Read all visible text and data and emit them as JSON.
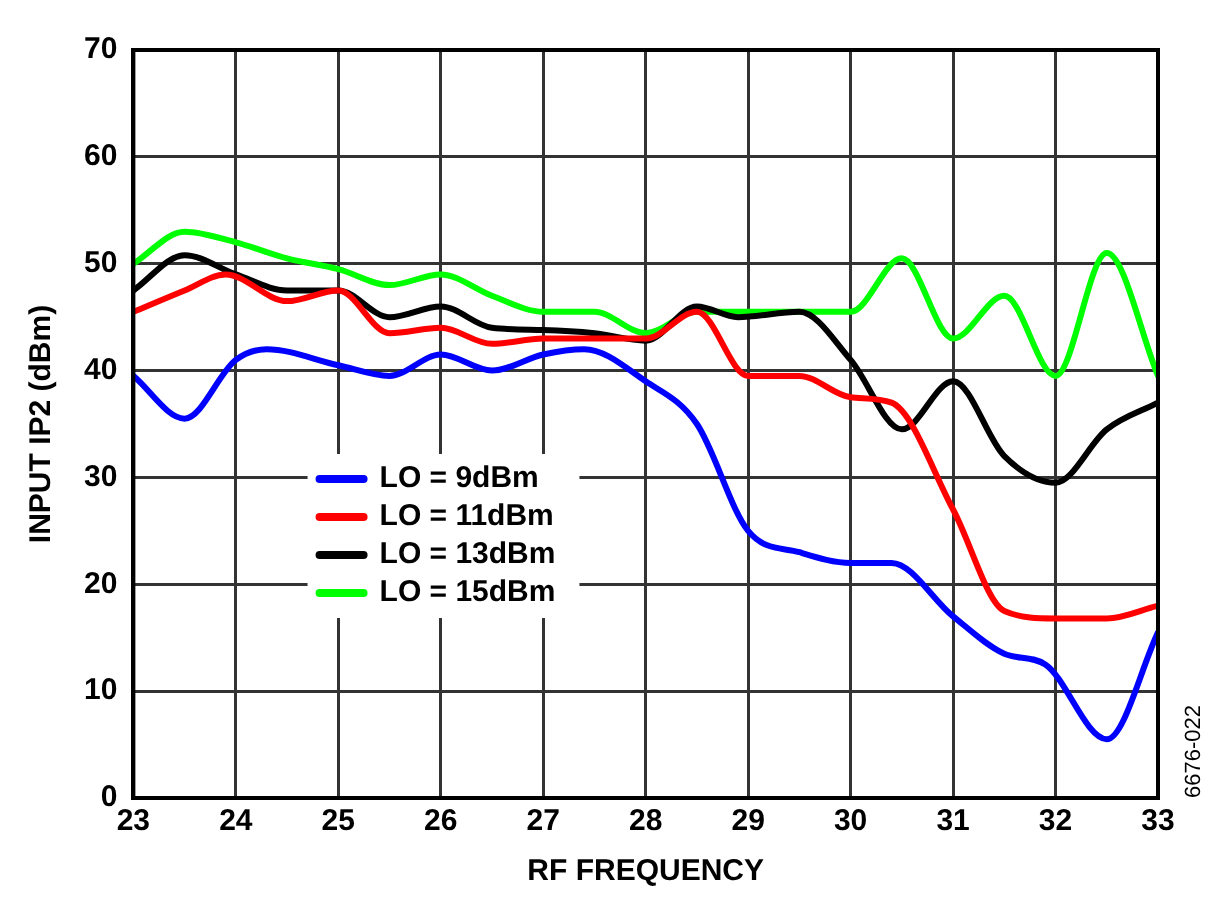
{
  "chart_data": {
    "type": "line",
    "xlabel": "RF FREQUENCY",
    "ylabel": "INPUT IP2 (dBm)",
    "xlim": [
      23,
      33
    ],
    "xticks": [
      23,
      24,
      25,
      26,
      27,
      28,
      29,
      30,
      31,
      32,
      33
    ],
    "ylim": [
      0,
      70
    ],
    "yticks": [
      0,
      10,
      20,
      30,
      40,
      50,
      60,
      70
    ],
    "grid": true,
    "legend": "bottom left",
    "marker": "none",
    "line_style": "solid",
    "annotations": [
      "6676-022"
    ],
    "series": [
      {
        "name": "LO = 9dBm",
        "color": "#0000ff",
        "x": [
          23,
          23.5,
          24,
          24.3,
          25,
          25.5,
          26,
          26.5,
          27,
          27.4,
          28,
          28.5,
          29,
          29.5,
          30,
          30.4,
          31,
          31.5,
          31.9,
          32.5,
          33
        ],
        "values": [
          39.5,
          35.5,
          41,
          42,
          40.5,
          39.5,
          41.5,
          40,
          41.5,
          42,
          39,
          35,
          25,
          23,
          22,
          22,
          17,
          13.5,
          12.5,
          5.5,
          15.5
        ]
      },
      {
        "name": "LO = 11dBm",
        "color": "#ff0000",
        "x": [
          23,
          23.5,
          23.9,
          24.5,
          25,
          25.5,
          26,
          26.5,
          27,
          27.5,
          28,
          28.5,
          29,
          29.5,
          30,
          30.4,
          31,
          31.5,
          32,
          32.5,
          33
        ],
        "values": [
          45.5,
          47.5,
          49,
          46.5,
          47.5,
          43.5,
          44,
          42.5,
          43,
          43,
          43,
          45.5,
          39.5,
          39.5,
          37.5,
          37,
          27,
          17.5,
          16.8,
          16.8,
          18
        ]
      },
      {
        "name": "LO = 13dBm",
        "color": "#000000",
        "x": [
          23,
          23.5,
          24,
          24.5,
          25,
          25.5,
          26,
          26.5,
          27,
          27.5,
          28,
          28.5,
          28.9,
          29.5,
          30,
          30.5,
          31,
          31.5,
          32,
          32.5,
          33
        ],
        "values": [
          47.5,
          50.8,
          49,
          47.5,
          47.5,
          45,
          46,
          44,
          43.8,
          43.5,
          42.8,
          46,
          45,
          45.5,
          41,
          34.5,
          39,
          32,
          29.5,
          34.5,
          37
        ]
      },
      {
        "name": "LO = 15dBm",
        "color": "#00ff00",
        "x": [
          23,
          23.5,
          24,
          24.5,
          25,
          25.5,
          26,
          26.5,
          27,
          27.5,
          28,
          28.5,
          29,
          29.5,
          30,
          30.5,
          31,
          31.5,
          32,
          32.5,
          33
        ],
        "values": [
          50,
          53,
          52,
          50.5,
          49.5,
          48,
          49,
          47,
          45.5,
          45.5,
          43.5,
          45.5,
          45.5,
          45.5,
          45.5,
          50.5,
          43,
          47,
          39.5,
          51,
          39.5
        ]
      }
    ]
  }
}
